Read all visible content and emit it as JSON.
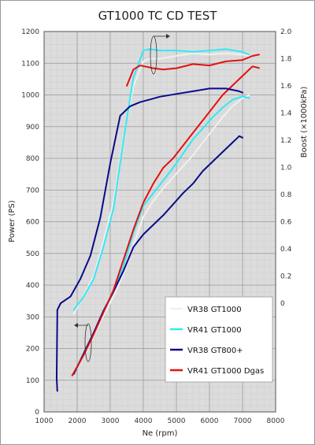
{
  "chart_data": {
    "type": "line",
    "title": "GT1000 TC CD TEST",
    "xlabel": "Ne (rpm)",
    "ylabel": "Power (PS)",
    "y2label": "Boost (×1000kPa)",
    "xlim": [
      1000,
      8000
    ],
    "ylim": [
      0,
      1200
    ],
    "y2lim": [
      -0.8,
      2.0
    ],
    "x_ticks": [
      "1000",
      "2000",
      "3000",
      "4000",
      "5000",
      "6000",
      "7000",
      "8000"
    ],
    "y_ticks": [
      "0",
      "100",
      "200",
      "300",
      "400",
      "500",
      "600",
      "700",
      "800",
      "900",
      "1000",
      "1100",
      "1200"
    ],
    "y2_ticks": [
      "0",
      "0.2",
      "0.4",
      "0.6",
      "0.8",
      "1.0",
      "1.2",
      "1.4",
      "1.6",
      "1.8",
      "2.0"
    ],
    "grid": true,
    "legend_position": "bottom-right",
    "colors": {
      "VR38 GT1000": "#f0f0f0",
      "VR41 GT1000": "#33e8f5",
      "VR38 GT800+": "#0a0a8c",
      "VR41 GT1000 Dgas": "#e41010"
    },
    "legend": [
      "VR38 GT1000",
      "VR41 GT1000",
      "VR38 GT800+",
      "VR41 GT1000 Dgas"
    ],
    "series": [
      {
        "name": "VR38 GT1000",
        "kind": "power",
        "x": [
          1900,
          2200,
          2500,
          2800,
          3100,
          3400,
          3700,
          4000,
          4300,
          4600,
          4900,
          5200,
          5500,
          5800,
          6100,
          6400,
          6700,
          7000,
          7200
        ],
        "values": [
          120,
          175,
          240,
          305,
          365,
          435,
          525,
          615,
          665,
          705,
          740,
          775,
          810,
          850,
          890,
          930,
          965,
          990,
          1000
        ]
      },
      {
        "name": "VR41 GT1000",
        "kind": "power",
        "x": [
          1900,
          2200,
          2500,
          2800,
          3100,
          3400,
          3700,
          4000,
          4300,
          4600,
          4900,
          5200,
          5500,
          5800,
          6100,
          6400,
          6700,
          7000,
          7200
        ],
        "values": [
          120,
          180,
          250,
          315,
          380,
          460,
          565,
          650,
          690,
          730,
          770,
          815,
          860,
          895,
          930,
          960,
          985,
          995,
          990
        ]
      },
      {
        "name": "VR38 GT800+",
        "kind": "power",
        "x": [
          1900,
          2200,
          2500,
          2800,
          3100,
          3400,
          3700,
          4000,
          4300,
          4600,
          4900,
          5200,
          5500,
          5800,
          6100,
          6400,
          6700,
          6900,
          7000
        ],
        "values": [
          120,
          185,
          250,
          320,
          380,
          445,
          520,
          560,
          590,
          620,
          655,
          690,
          720,
          760,
          790,
          820,
          850,
          870,
          865
        ]
      },
      {
        "name": "VR41 GT1000 Dgas",
        "kind": "power",
        "x": [
          1850,
          2200,
          2500,
          2800,
          3100,
          3400,
          3700,
          4000,
          4300,
          4600,
          4900,
          5200,
          5500,
          5800,
          6100,
          6400,
          6700,
          7000,
          7300,
          7500
        ],
        "values": [
          115,
          180,
          245,
          315,
          385,
          480,
          575,
          660,
          720,
          770,
          800,
          840,
          880,
          920,
          960,
          1000,
          1030,
          1060,
          1090,
          1085
        ]
      },
      {
        "name": "VR38 GT1000",
        "kind": "boost",
        "x": [
          1900,
          2200,
          2500,
          2800,
          3100,
          3400,
          3700,
          4000,
          4200,
          4500,
          5000,
          5500,
          6000,
          6500,
          7000,
          7200
        ],
        "values": [
          -0.08,
          0.06,
          0.2,
          0.46,
          0.75,
          1.22,
          1.6,
          1.78,
          1.8,
          1.8,
          1.82,
          1.84,
          1.83,
          1.84,
          1.83,
          1.82
        ]
      },
      {
        "name": "VR41 GT1000",
        "kind": "boost",
        "x": [
          1900,
          2200,
          2500,
          2800,
          3100,
          3400,
          3700,
          4000,
          4200,
          4500,
          5000,
          5500,
          6000,
          6500,
          7000,
          7200
        ],
        "values": [
          -0.05,
          0.05,
          0.18,
          0.42,
          0.7,
          1.2,
          1.66,
          1.86,
          1.87,
          1.86,
          1.86,
          1.85,
          1.86,
          1.87,
          1.85,
          1.83
        ]
      },
      {
        "name": "VR38 GT800+",
        "kind": "boost",
        "x": [
          1400,
          1500,
          1800,
          2100,
          2400,
          2700,
          3000,
          3300,
          3600,
          3900,
          4200,
          4500,
          5000,
          5500,
          6000,
          6500,
          6900,
          7000
        ],
        "values": [
          -0.05,
          0.0,
          0.05,
          0.18,
          0.35,
          0.63,
          1.03,
          1.38,
          1.45,
          1.48,
          1.5,
          1.52,
          1.54,
          1.56,
          1.58,
          1.58,
          1.56,
          1.55
        ]
      },
      {
        "name": "VR41 GT1000 Dgas",
        "kind": "boost",
        "x": [
          3500,
          3700,
          3900,
          4100,
          4300,
          4600,
          5000,
          5500,
          6000,
          6500,
          7000,
          7300,
          7500
        ],
        "values": [
          1.6,
          1.72,
          1.75,
          1.74,
          1.73,
          1.72,
          1.73,
          1.76,
          1.75,
          1.78,
          1.79,
          1.82,
          1.83
        ]
      }
    ]
  }
}
